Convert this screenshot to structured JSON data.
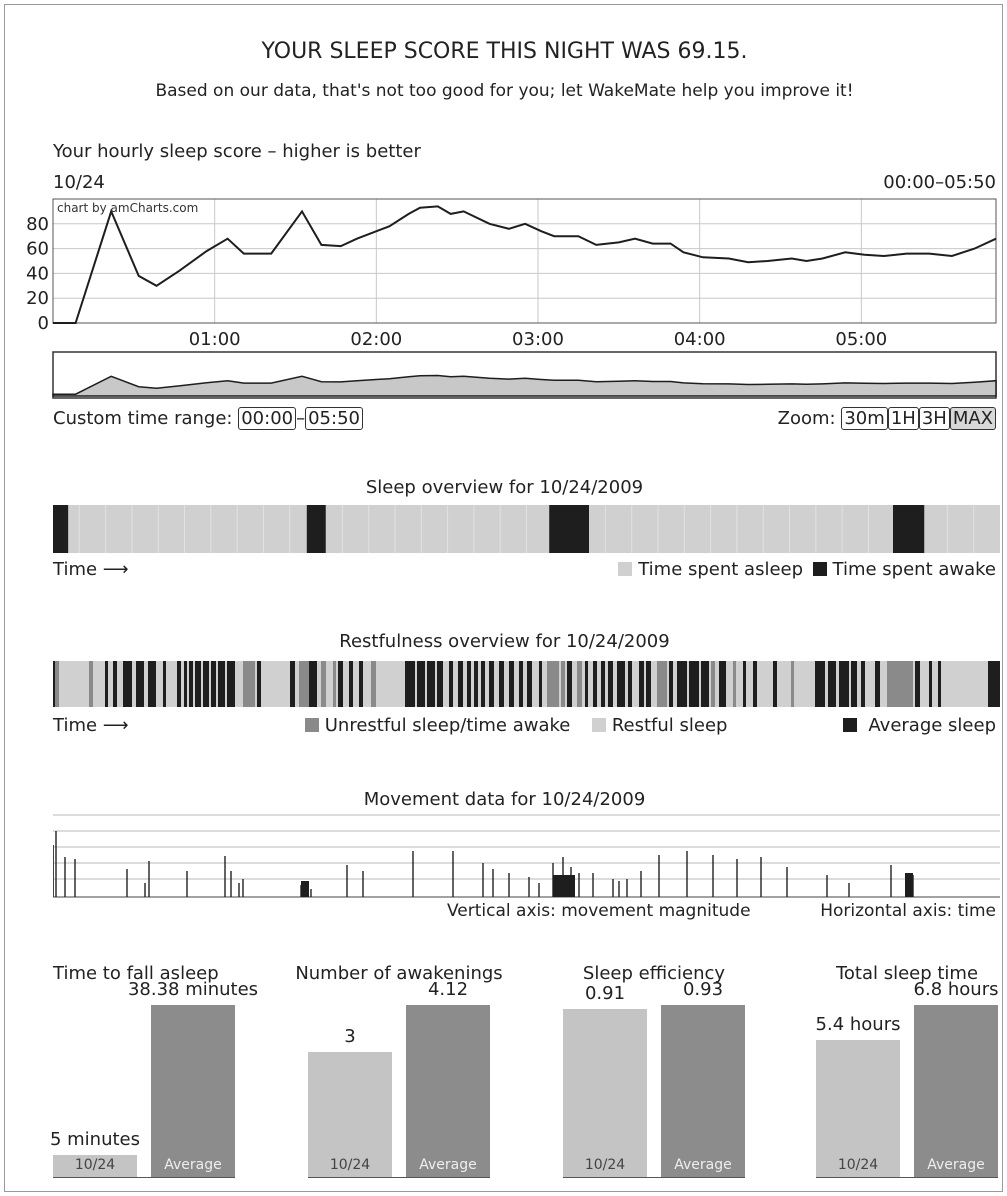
{
  "header": {
    "title": "YOUR SLEEP SCORE THIS NIGHT WAS 69.15.",
    "subtitle": "Based on our data, that's not too good for you; let WakeMate help you improve it!"
  },
  "score_chart": {
    "heading": "Your hourly sleep score – higher is better",
    "date": "10/24",
    "range": "00:00–05:50",
    "credit": "chart by amCharts.com",
    "custom_range_label": "Custom time range:",
    "range_start": "00:00",
    "range_sep": "–",
    "range_end": "05:50",
    "zoom_label": "Zoom:",
    "zoom_options": [
      "30m",
      "1H",
      "3H",
      "MAX"
    ]
  },
  "sleep_overview": {
    "title": "Sleep overview for 10/24/2009",
    "time_label": "Time",
    "legend_asleep": "Time spent asleep",
    "legend_awake": "Time spent awake",
    "awake_segments": [
      [
        0.0,
        0.016
      ],
      [
        0.268,
        0.288
      ],
      [
        0.524,
        0.566
      ],
      [
        0.887,
        0.92
      ]
    ]
  },
  "restfulness": {
    "title": "Restfulness overview for 10/24/2009",
    "time_label": "Time",
    "legend_unrestful": "Unrestful sleep/time awake",
    "legend_restful": "Restful sleep",
    "legend_average": "Average sleep"
  },
  "movement": {
    "title": "Movement data for 10/24/2009",
    "vertical_note": "Vertical axis: movement magnitude",
    "horizontal_note": "Horizontal axis: time"
  },
  "colors": {
    "line": "#1e1e1e",
    "grid": "#c8c8c8",
    "asleep": "#d0d0d0",
    "awake": "#1e1e1e",
    "unrestful": "#8a8a8a",
    "restful": "#d0d0d0",
    "average": "#1e1e1e",
    "bar_light": "#c4c4c4",
    "bar_dark": "#8c8c8c"
  },
  "chart_data": [
    {
      "type": "line",
      "title": "Your hourly sleep score – higher is better",
      "x_tick_labels": [
        "01:00",
        "02:00",
        "03:00",
        "04:00",
        "05:00"
      ],
      "y_ticks": [
        0,
        20,
        40,
        60,
        80
      ],
      "ylim": [
        0,
        100
      ],
      "xlim_hours": [
        0,
        5.833
      ],
      "x_hours": [
        0.0,
        0.14,
        0.36,
        0.53,
        0.64,
        0.78,
        0.95,
        1.08,
        1.18,
        1.35,
        1.54,
        1.66,
        1.78,
        1.88,
        2.08,
        2.2,
        2.27,
        2.38,
        2.46,
        2.54,
        2.7,
        2.82,
        2.92,
        3.02,
        3.1,
        3.25,
        3.36,
        3.5,
        3.6,
        3.71,
        3.82,
        3.9,
        4.02,
        4.18,
        4.3,
        4.42,
        4.57,
        4.66,
        4.76,
        4.9,
        5.02,
        5.14,
        5.28,
        5.42,
        5.56,
        5.7,
        5.833
      ],
      "values": [
        0,
        0,
        90,
        38,
        30,
        42,
        58,
        68,
        56,
        56,
        90,
        63,
        62,
        68,
        78,
        88,
        93,
        94,
        88,
        90,
        80,
        76,
        80,
        74,
        70,
        70,
        63,
        65,
        68,
        64,
        64,
        57,
        53,
        52,
        49,
        50,
        52,
        50,
        52,
        57,
        55,
        54,
        56,
        56,
        54,
        60,
        68
      ]
    },
    {
      "type": "bar",
      "title": "Time to fall asleep",
      "categories": [
        "10/24",
        "Average"
      ],
      "values": [
        5,
        38.38
      ],
      "value_labels": [
        "5 minutes",
        "38.38 minutes"
      ]
    },
    {
      "type": "bar",
      "title": "Number of awakenings",
      "categories": [
        "10/24",
        "Average"
      ],
      "values": [
        3,
        4.12
      ],
      "value_labels": [
        "3",
        "4.12"
      ]
    },
    {
      "type": "bar",
      "title": "Sleep efficiency",
      "categories": [
        "10/24",
        "Average"
      ],
      "values": [
        0.91,
        0.93
      ],
      "value_labels": [
        "0.91",
        "0.93"
      ]
    },
    {
      "type": "bar",
      "title": "Total sleep time",
      "categories": [
        "10/24",
        "Average"
      ],
      "values": [
        5.4,
        6.8
      ],
      "value_labels": [
        "5.4 hours",
        "6.8 hours"
      ]
    }
  ]
}
